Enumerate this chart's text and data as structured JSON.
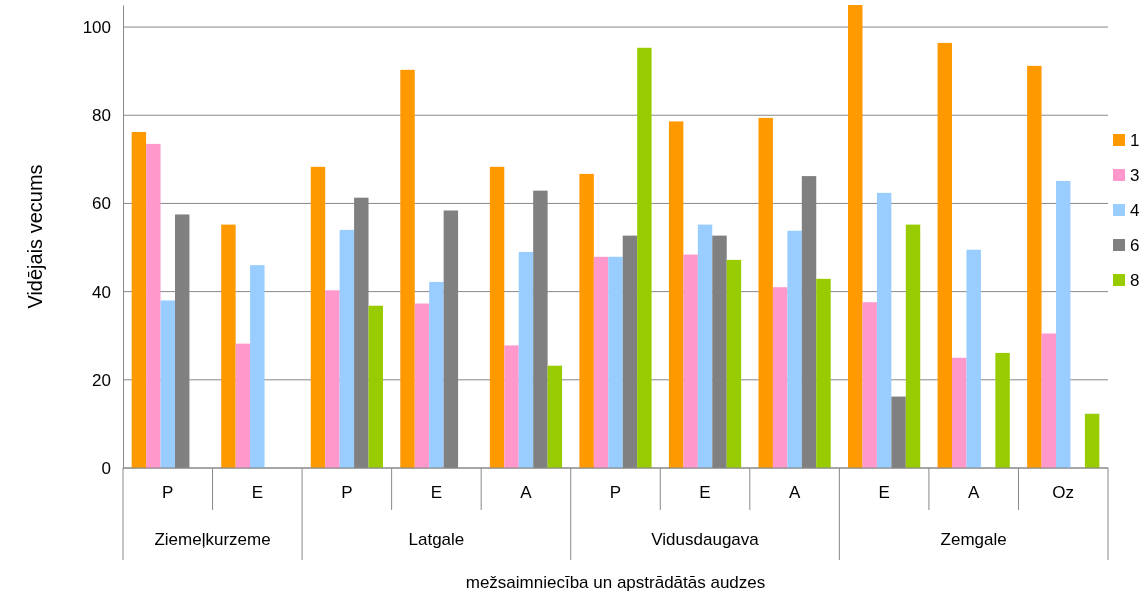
{
  "chart_data": {
    "type": "bar",
    "xlabel": "mežsaimniecība un apstrādātās audzes",
    "ylabel": "Vidējais vecums",
    "categories": [
      "P",
      "E",
      "P",
      "E",
      "A",
      "P",
      "E",
      "A",
      "E",
      "A",
      "Oz"
    ],
    "annotations": [
      "Ziemeļkurzeme",
      "Latgale",
      "Vidusdaugava",
      "Zemgale"
    ],
    "series": [
      {
        "name": "1",
        "color": "#ff9900",
        "values": [
          76.2,
          55.2,
          68.3,
          90.3,
          68.3,
          66.7,
          78.6,
          79.4,
          105,
          96.4,
          91.2
        ]
      },
      {
        "name": "3",
        "color": "#ff99cc",
        "values": [
          73.5,
          28.2,
          40.3,
          37.3,
          27.8,
          47.9,
          48.4,
          41,
          37.6,
          25,
          30.5
        ]
      },
      {
        "name": "4",
        "color": "#99ccff",
        "values": [
          38,
          46,
          54,
          42.2,
          49,
          47.9,
          55.2,
          53.8,
          62.4,
          49.5,
          65.1
        ]
      },
      {
        "name": "6",
        "color": "#808080",
        "values": [
          57.5,
          null,
          61.3,
          58.4,
          62.9,
          52.7,
          52.7,
          66.2,
          16.2,
          null,
          null
        ]
      },
      {
        "name": "8",
        "color": "#99cc00",
        "values": [
          null,
          null,
          36.8,
          null,
          23.2,
          95.3,
          47.2,
          42.9,
          55.2,
          26.1,
          12.3
        ]
      }
    ],
    "ylim": [
      0,
      105
    ],
    "yticks": [
      0,
      20,
      40,
      60,
      80,
      100
    ],
    "grid": "y",
    "legend": "right"
  }
}
